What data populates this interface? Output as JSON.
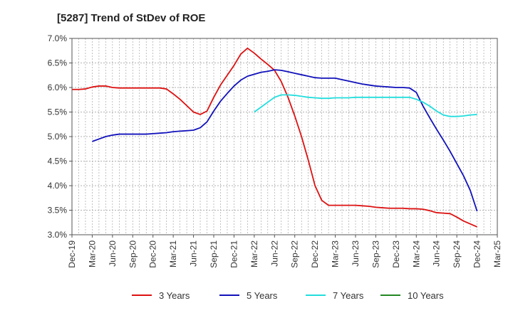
{
  "chart_data": {
    "type": "line",
    "title": "[5287]  Trend of StDev of ROE",
    "xlabel": "",
    "ylabel": "",
    "ylim": [
      3.0,
      7.0
    ],
    "y_ticks": [
      "3.0%",
      "3.5%",
      "4.0%",
      "4.5%",
      "5.0%",
      "5.5%",
      "6.0%",
      "6.5%",
      "7.0%"
    ],
    "x_ticks": [
      "Dec-19",
      "Mar-20",
      "Jun-20",
      "Sep-20",
      "Dec-20",
      "Mar-21",
      "Jun-21",
      "Sep-21",
      "Dec-21",
      "Mar-22",
      "Jun-22",
      "Sep-22",
      "Dec-22",
      "Mar-23",
      "Jun-23",
      "Sep-23",
      "Dec-23",
      "Mar-24",
      "Jun-24",
      "Sep-24",
      "Dec-24",
      "Mar-25"
    ],
    "grid": true,
    "legend_position": "bottom",
    "series": [
      {
        "name": "3 Years",
        "color": "#dd1111",
        "points": [
          [
            "Dec-19",
            5.96
          ],
          [
            "Jan-20",
            5.96
          ],
          [
            "Feb-20",
            5.97
          ],
          [
            "Mar-20",
            6.01
          ],
          [
            "Apr-20",
            6.03
          ],
          [
            "May-20",
            6.03
          ],
          [
            "Jun-20",
            6.0
          ],
          [
            "Jul-20",
            5.99
          ],
          [
            "Aug-20",
            5.99
          ],
          [
            "Sep-20",
            5.99
          ],
          [
            "Oct-20",
            5.99
          ],
          [
            "Nov-20",
            5.99
          ],
          [
            "Dec-20",
            5.99
          ],
          [
            "Jan-21",
            5.99
          ],
          [
            "Feb-21",
            5.97
          ],
          [
            "Mar-21",
            5.87
          ],
          [
            "Apr-21",
            5.76
          ],
          [
            "May-21",
            5.63
          ],
          [
            "Jun-21",
            5.5
          ],
          [
            "Jul-21",
            5.45
          ],
          [
            "Aug-21",
            5.52
          ],
          [
            "Sep-21",
            5.8
          ],
          [
            "Oct-21",
            6.05
          ],
          [
            "Nov-21",
            6.25
          ],
          [
            "Dec-21",
            6.45
          ],
          [
            "Jan-22",
            6.68
          ],
          [
            "Feb-22",
            6.8
          ],
          [
            "Mar-22",
            6.7
          ],
          [
            "Apr-22",
            6.58
          ],
          [
            "May-22",
            6.47
          ],
          [
            "Jun-22",
            6.35
          ],
          [
            "Jul-22",
            6.12
          ],
          [
            "Aug-22",
            5.8
          ],
          [
            "Sep-22",
            5.42
          ],
          [
            "Oct-22",
            5.0
          ],
          [
            "Nov-22",
            4.52
          ],
          [
            "Dec-22",
            4.0
          ],
          [
            "Jan-23",
            3.7
          ],
          [
            "Feb-23",
            3.6
          ],
          [
            "Mar-23",
            3.6
          ],
          [
            "Apr-23",
            3.6
          ],
          [
            "May-23",
            3.6
          ],
          [
            "Jun-23",
            3.6
          ],
          [
            "Jul-23",
            3.59
          ],
          [
            "Aug-23",
            3.58
          ],
          [
            "Sep-23",
            3.56
          ],
          [
            "Oct-23",
            3.55
          ],
          [
            "Nov-23",
            3.54
          ],
          [
            "Dec-23",
            3.54
          ],
          [
            "Jan-24",
            3.54
          ],
          [
            "Feb-24",
            3.53
          ],
          [
            "Mar-24",
            3.53
          ],
          [
            "Apr-24",
            3.52
          ],
          [
            "May-24",
            3.49
          ],
          [
            "Jun-24",
            3.45
          ],
          [
            "Jul-24",
            3.44
          ],
          [
            "Aug-24",
            3.43
          ],
          [
            "Sep-24",
            3.36
          ],
          [
            "Oct-24",
            3.28
          ],
          [
            "Nov-24",
            3.22
          ],
          [
            "Dec-24",
            3.16
          ]
        ]
      },
      {
        "name": "5 Years",
        "color": "#1111bb",
        "points": [
          [
            "Mar-20",
            4.9
          ],
          [
            "Apr-20",
            4.95
          ],
          [
            "May-20",
            5.0
          ],
          [
            "Jun-20",
            5.03
          ],
          [
            "Jul-20",
            5.05
          ],
          [
            "Aug-20",
            5.05
          ],
          [
            "Sep-20",
            5.05
          ],
          [
            "Oct-20",
            5.05
          ],
          [
            "Nov-20",
            5.05
          ],
          [
            "Dec-20",
            5.06
          ],
          [
            "Jan-21",
            5.07
          ],
          [
            "Feb-21",
            5.08
          ],
          [
            "Mar-21",
            5.1
          ],
          [
            "Apr-21",
            5.11
          ],
          [
            "May-21",
            5.12
          ],
          [
            "Jun-21",
            5.13
          ],
          [
            "Jul-21",
            5.18
          ],
          [
            "Aug-21",
            5.3
          ],
          [
            "Sep-21",
            5.52
          ],
          [
            "Oct-21",
            5.72
          ],
          [
            "Nov-21",
            5.88
          ],
          [
            "Dec-21",
            6.03
          ],
          [
            "Jan-22",
            6.15
          ],
          [
            "Feb-22",
            6.23
          ],
          [
            "Mar-22",
            6.27
          ],
          [
            "Apr-22",
            6.31
          ],
          [
            "May-22",
            6.33
          ],
          [
            "Jun-22",
            6.36
          ],
          [
            "Jul-22",
            6.35
          ],
          [
            "Aug-22",
            6.32
          ],
          [
            "Sep-22",
            6.29
          ],
          [
            "Oct-22",
            6.26
          ],
          [
            "Nov-22",
            6.23
          ],
          [
            "Dec-22",
            6.2
          ],
          [
            "Jan-23",
            6.19
          ],
          [
            "Feb-23",
            6.19
          ],
          [
            "Mar-23",
            6.19
          ],
          [
            "Apr-23",
            6.16
          ],
          [
            "May-23",
            6.13
          ],
          [
            "Jun-23",
            6.1
          ],
          [
            "Jul-23",
            6.07
          ],
          [
            "Aug-23",
            6.05
          ],
          [
            "Sep-23",
            6.03
          ],
          [
            "Oct-23",
            6.02
          ],
          [
            "Nov-23",
            6.01
          ],
          [
            "Dec-23",
            6.0
          ],
          [
            "Jan-24",
            6.0
          ],
          [
            "Feb-24",
            5.99
          ],
          [
            "Mar-24",
            5.9
          ],
          [
            "Apr-24",
            5.62
          ],
          [
            "May-24",
            5.38
          ],
          [
            "Jun-24",
            5.15
          ],
          [
            "Jul-24",
            4.93
          ],
          [
            "Aug-24",
            4.7
          ],
          [
            "Sep-24",
            4.45
          ],
          [
            "Oct-24",
            4.2
          ],
          [
            "Nov-24",
            3.9
          ],
          [
            "Dec-24",
            3.48
          ]
        ]
      },
      {
        "name": "7 Years",
        "color": "#22dddd",
        "points": [
          [
            "Mar-22",
            5.5
          ],
          [
            "Apr-22",
            5.6
          ],
          [
            "May-22",
            5.7
          ],
          [
            "Jun-22",
            5.8
          ],
          [
            "Jul-22",
            5.85
          ],
          [
            "Aug-22",
            5.85
          ],
          [
            "Sep-22",
            5.84
          ],
          [
            "Oct-22",
            5.82
          ],
          [
            "Nov-22",
            5.8
          ],
          [
            "Dec-22",
            5.79
          ],
          [
            "Jan-23",
            5.78
          ],
          [
            "Feb-23",
            5.78
          ],
          [
            "Mar-23",
            5.79
          ],
          [
            "Apr-23",
            5.79
          ],
          [
            "May-23",
            5.79
          ],
          [
            "Jun-23",
            5.8
          ],
          [
            "Jul-23",
            5.8
          ],
          [
            "Aug-23",
            5.8
          ],
          [
            "Sep-23",
            5.8
          ],
          [
            "Oct-23",
            5.8
          ],
          [
            "Nov-23",
            5.8
          ],
          [
            "Dec-23",
            5.8
          ],
          [
            "Jan-24",
            5.8
          ],
          [
            "Feb-24",
            5.8
          ],
          [
            "Mar-24",
            5.76
          ],
          [
            "Apr-24",
            5.7
          ],
          [
            "May-24",
            5.62
          ],
          [
            "Jun-24",
            5.52
          ],
          [
            "Jul-24",
            5.44
          ],
          [
            "Aug-24",
            5.41
          ],
          [
            "Sep-24",
            5.41
          ],
          [
            "Oct-24",
            5.42
          ],
          [
            "Nov-24",
            5.44
          ],
          [
            "Dec-24",
            5.45
          ]
        ]
      },
      {
        "name": "10 Years",
        "color": "#228822",
        "points": []
      }
    ]
  }
}
